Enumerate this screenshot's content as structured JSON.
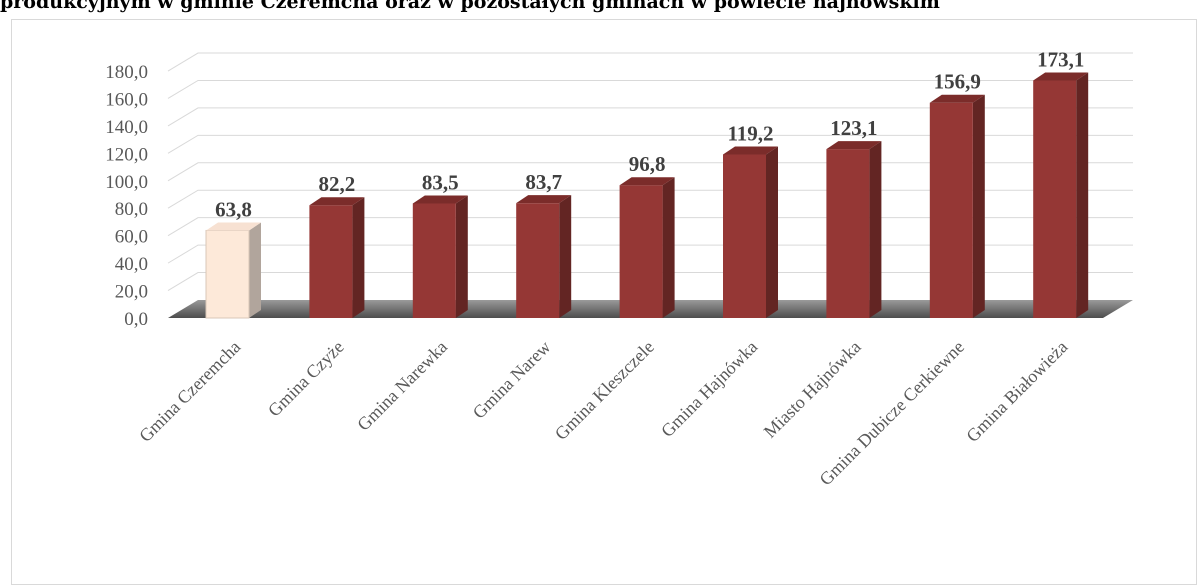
{
  "chart_data": {
    "type": "bar",
    "title": "produkcyjnym w gminie Czeremcha oraz w pozostałych gminach w powiecie hajnowskim",
    "categories": [
      "Gmina Czeremcha",
      "Gmina Czyże",
      "Gmina Narewka",
      "Gmina Narew",
      "Gmina Kleszczele",
      "Gmina Hajnówka",
      "Miasto Hajnówka",
      "Gmina Dubicze Cerkiewne",
      "Gmina Białowieża"
    ],
    "values": [
      63.8,
      82.2,
      83.5,
      83.7,
      96.8,
      119.2,
      123.1,
      156.9,
      173.1
    ],
    "value_labels": [
      "63,8",
      "82,2",
      "83,5",
      "83,7",
      "96,8",
      "119,2",
      "123,1",
      "156,9",
      "173,1"
    ],
    "ylim": [
      0,
      180
    ],
    "yticks": [
      "0,0",
      "20,0",
      "40,0",
      "60,0",
      "80,0",
      "100,0",
      "120,0",
      "140,0",
      "160,0",
      "180,0"
    ],
    "grid": true,
    "xlabel": "",
    "ylabel": "",
    "colors": {
      "highlight_front": "#fde9d9",
      "highlight_side": "#b1a59c",
      "highlight_top": "#f7e1d2",
      "bar_front": "#953735",
      "bar_side": "#632523",
      "bar_top": "#7b2c2a",
      "grid": "#d9d9d9",
      "floor": "#6b6b6b"
    }
  }
}
